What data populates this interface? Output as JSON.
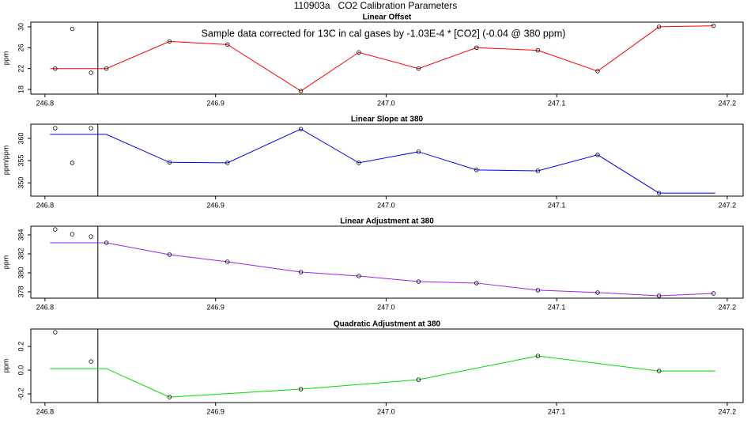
{
  "title": "110903a   CO2 Calibration Parameters",
  "chart_data": [
    {
      "type": "line",
      "title": "Linear Offset",
      "subtitle": "Sample data corrected for 13C in cal gases by -1.03E-4 * [CO2] (-0.04 @ 380 ppm)",
      "ylabel": "ppm",
      "xlim": [
        246.7917,
        247.2093
      ],
      "ylim": [
        17.1,
        30.9
      ],
      "xticks": [
        246.8,
        246.9,
        {
          "value": 247,
          "label": "247.0"
        },
        247.1,
        247.2
      ],
      "yticks": [
        18,
        22,
        26,
        30
      ],
      "vline": 246.831,
      "line": {
        "color": "#ff0000",
        "x": [
          246.803,
          246.836,
          246.873,
          246.907,
          246.95,
          246.984,
          247.019,
          247.053,
          247.089,
          247.124,
          247.16,
          247.192
        ],
        "values": [
          22.0,
          22.0,
          27.2,
          26.6,
          17.7,
          25.1,
          22.0,
          26.0,
          25.5,
          21.5,
          30.0,
          30.2
        ]
      },
      "points": {
        "x": [
          246.806,
          246.816,
          246.827,
          246.836,
          246.873,
          246.907,
          246.95,
          246.984,
          247.019,
          247.053,
          247.089,
          247.124,
          247.16,
          247.192
        ],
        "values": [
          22.0,
          29.6,
          21.2,
          22.0,
          27.2,
          26.6,
          17.7,
          25.1,
          22.0,
          26.0,
          25.5,
          21.5,
          30.0,
          30.2
        ]
      }
    },
    {
      "type": "line",
      "title": "Linear Slope at 380",
      "ylabel": "ppm/ppm",
      "xlim": [
        246.7917,
        247.2093
      ],
      "ylim": [
        347.0,
        363.2
      ],
      "xticks": [
        246.8,
        246.9,
        {
          "value": 247,
          "label": "247.0"
        },
        247.1,
        247.2
      ],
      "yticks": [
        350,
        355,
        360
      ],
      "vline": 246.831,
      "line": {
        "color": "#0000ff",
        "x": [
          246.803,
          246.836,
          246.873,
          246.907,
          246.95,
          246.984,
          247.019,
          247.053,
          247.089,
          247.124,
          247.16,
          247.193
        ],
        "values": [
          360.9,
          360.9,
          354.6,
          354.5,
          362.1,
          354.5,
          357.0,
          352.9,
          352.7,
          356.3,
          347.7,
          347.7
        ]
      },
      "points": {
        "x": [
          246.806,
          246.816,
          246.827,
          246.873,
          246.907,
          246.95,
          246.984,
          247.019,
          247.053,
          247.089,
          247.124,
          247.16
        ],
        "values": [
          362.3,
          354.5,
          362.3,
          354.6,
          354.5,
          362.1,
          354.5,
          357.0,
          352.9,
          352.7,
          356.3,
          347.7
        ]
      }
    },
    {
      "type": "line",
      "title": "Linear Adjustment at 380",
      "ylabel": "ppm",
      "xlim": [
        246.7917,
        247.2093
      ],
      "ylim": [
        377.33,
        384.92
      ],
      "xticks": [
        246.8,
        246.9,
        {
          "value": 247,
          "label": "247.0"
        },
        247.1,
        247.2
      ],
      "yticks": [
        378,
        380,
        382,
        384
      ],
      "vline": 246.831,
      "line": {
        "color": "#a020f0",
        "x": [
          246.803,
          246.836,
          246.873,
          246.907,
          246.95,
          246.984,
          247.019,
          247.053,
          247.089,
          247.124,
          247.16,
          247.192
        ],
        "values": [
          383.17,
          383.17,
          381.92,
          381.17,
          380.08,
          379.67,
          379.08,
          378.92,
          378.17,
          377.92,
          377.58,
          377.83
        ]
      },
      "points": {
        "x": [
          246.806,
          246.816,
          246.827,
          246.836,
          246.873,
          246.907,
          246.95,
          246.984,
          247.019,
          247.053,
          247.089,
          247.124,
          247.16,
          247.192
        ],
        "values": [
          384.58,
          384.08,
          383.83,
          383.17,
          381.92,
          381.17,
          380.08,
          379.67,
          379.08,
          378.92,
          378.17,
          377.92,
          377.58,
          377.83
        ]
      }
    },
    {
      "type": "line",
      "title": "Quadratic Adjustment at 380",
      "ylabel": "ppm",
      "xlim": [
        246.7917,
        247.2093
      ],
      "ylim": [
        -0.273,
        0.347
      ],
      "xticks": [
        246.8,
        246.9,
        {
          "value": 247,
          "label": "247.0"
        },
        247.1,
        247.2
      ],
      "yticks": [
        -0.2,
        {
          "value": 0,
          "label": "0.0"
        },
        0.2
      ],
      "vline": 246.831,
      "line": {
        "color": "#00dd00",
        "x": [
          246.803,
          246.836,
          246.873,
          246.95,
          247.019,
          247.089,
          247.16,
          247.193
        ],
        "values": [
          0.013,
          0.013,
          -0.227,
          -0.16,
          -0.08,
          0.12,
          -0.007,
          -0.007
        ]
      },
      "points": {
        "x": [
          246.806,
          246.827,
          246.873,
          246.95,
          247.019,
          247.089,
          247.16
        ],
        "values": [
          0.32,
          0.073,
          -0.227,
          -0.16,
          -0.08,
          0.12,
          -0.007
        ]
      }
    }
  ]
}
